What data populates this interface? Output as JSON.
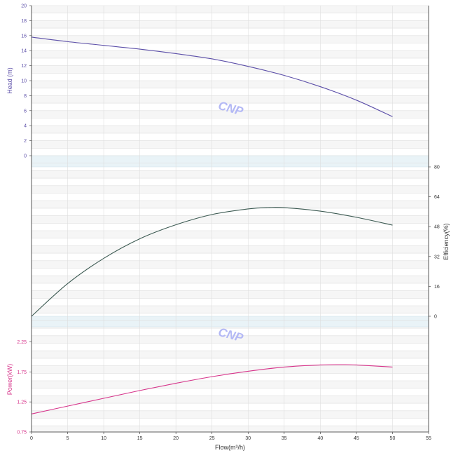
{
  "colors": {
    "head": "#5b4ea8",
    "efficiency": "#3c5a52",
    "power": "#d6338a",
    "separator": "#e9f3f7",
    "grid": "#dedede",
    "band": "#f6f6f6",
    "watermark": "#b3b8f5"
  },
  "watermark_text": "CNP",
  "chart_data": [
    {
      "type": "line",
      "panel": "head",
      "ylabel": "Head (m)",
      "ylim": [
        0,
        20
      ],
      "yticks": [
        "0",
        "2",
        "4",
        "6",
        "8",
        "10",
        "12",
        "14",
        "16",
        "18",
        "20"
      ],
      "xlim": [
        0,
        55
      ],
      "series": [
        {
          "x": [
            0,
            5,
            10,
            15,
            20,
            25,
            30,
            35,
            40,
            45,
            50
          ],
          "values": [
            15.8,
            15.2,
            14.7,
            14.2,
            13.6,
            12.9,
            11.9,
            10.7,
            9.2,
            7.4,
            5.2
          ]
        }
      ]
    },
    {
      "type": "line",
      "panel": "efficiency",
      "ylabel": "Efficiency(%)",
      "ylim": [
        0,
        80
      ],
      "yticks": [
        "0",
        "16",
        "32",
        "48",
        "64",
        "80"
      ],
      "xlim": [
        0,
        55
      ],
      "series": [
        {
          "x": [
            0,
            5,
            10,
            15,
            20,
            25,
            30,
            33,
            35,
            40,
            45,
            50
          ],
          "values": [
            0,
            17.5,
            31,
            41.5,
            49,
            54.5,
            57.5,
            58.3,
            58.2,
            56.3,
            53,
            48.8
          ]
        }
      ]
    },
    {
      "type": "line",
      "panel": "power",
      "ylabel": "Power(kW)",
      "ylim": [
        0.75,
        2.5
      ],
      "yticks": [
        "0.75",
        "1.25",
        "1.75",
        "2.25"
      ],
      "xlim": [
        0,
        55
      ],
      "xlabel": "Flow(m³/h)",
      "xticks": [
        "0",
        "5",
        "10",
        "15",
        "20",
        "25",
        "30",
        "35",
        "40",
        "45",
        "50",
        "55"
      ],
      "series": [
        {
          "x": [
            0,
            5,
            10,
            15,
            20,
            25,
            30,
            35,
            40,
            43,
            45,
            50
          ],
          "values": [
            1.05,
            1.18,
            1.31,
            1.44,
            1.56,
            1.67,
            1.76,
            1.83,
            1.865,
            1.87,
            1.865,
            1.83
          ]
        }
      ]
    }
  ]
}
